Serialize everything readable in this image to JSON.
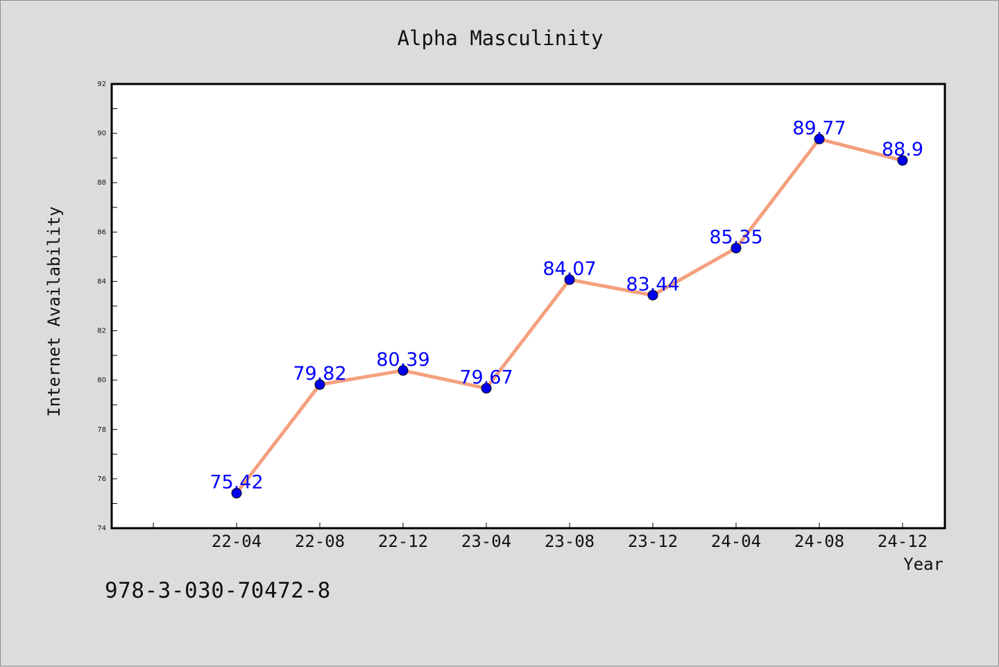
{
  "chart_data": {
    "type": "line",
    "title": "Alpha Masculinity",
    "xlabel": "Year",
    "ylabel": "Internet Availability",
    "categories": [
      "22-04",
      "22-08",
      "22-12",
      "23-04",
      "23-08",
      "23-12",
      "24-04",
      "24-08",
      "24-12"
    ],
    "series": [
      {
        "values": [
          75.42,
          79.82,
          80.39,
          79.67,
          84.07,
          83.44,
          85.35,
          89.77,
          88.9
        ]
      }
    ],
    "data_labels": [
      "75.42",
      "79.82",
      "80.39",
      "79.67",
      "84.07",
      "83.44",
      "85.35",
      "89.77",
      "88.9"
    ],
    "ylim": [
      74,
      92
    ],
    "yticks": [
      74,
      76,
      78,
      80,
      82,
      84,
      86,
      88,
      90,
      92
    ],
    "grid": false,
    "legend": "none",
    "colors": {
      "line": "#f4a07e",
      "marker": "#0000ee",
      "label": "#0000ff",
      "background": "#dcdcdc",
      "plot_background": "#ffffff"
    }
  },
  "caption": "978-3-030-70472-8"
}
